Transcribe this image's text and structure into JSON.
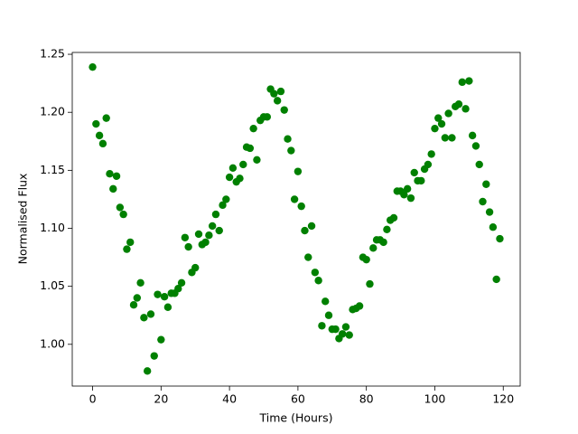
{
  "chart_data": {
    "type": "scatter",
    "xlabel": "Time (Hours)",
    "ylabel": "Normalised Flux",
    "color": "#008000",
    "x": [
      0,
      1,
      2,
      3,
      4,
      5,
      6,
      7,
      8,
      9,
      10,
      11,
      12,
      13,
      14,
      15,
      16,
      17,
      18,
      19,
      20,
      21,
      22,
      23,
      24,
      25,
      26,
      27,
      28,
      29,
      30,
      31,
      32,
      33,
      34,
      35,
      36,
      37,
      38,
      39,
      40,
      41,
      42,
      43,
      44,
      45,
      46,
      47,
      48,
      49,
      50,
      51,
      52,
      53,
      54,
      55,
      56,
      57,
      58,
      59,
      60,
      61,
      62,
      63,
      64,
      65,
      66,
      67,
      68,
      69,
      70,
      71,
      72,
      73,
      74,
      75,
      76,
      77,
      78,
      79,
      80,
      81,
      82,
      83,
      84,
      85,
      86,
      87,
      88,
      89,
      90,
      91,
      92,
      93,
      94,
      95,
      96,
      97,
      98,
      99,
      100,
      101,
      102,
      103,
      104,
      105,
      106,
      107,
      108,
      109,
      110,
      111,
      112,
      113,
      114,
      115,
      116,
      117,
      118,
      119
    ],
    "values": [
      1.239,
      1.19,
      1.18,
      1.173,
      1.195,
      1.147,
      1.134,
      1.145,
      1.118,
      1.112,
      1.082,
      1.088,
      1.034,
      1.04,
      1.053,
      1.023,
      0.977,
      1.026,
      0.99,
      1.043,
      1.004,
      1.041,
      1.032,
      1.044,
      1.044,
      1.048,
      1.053,
      1.092,
      1.084,
      1.062,
      1.066,
      1.095,
      1.086,
      1.088,
      1.094,
      1.102,
      1.112,
      1.098,
      1.12,
      1.125,
      1.144,
      1.152,
      1.14,
      1.143,
      1.155,
      1.17,
      1.169,
      1.186,
      1.159,
      1.193,
      1.196,
      1.196,
      1.22,
      1.216,
      1.21,
      1.218,
      1.202,
      1.177,
      1.167,
      1.125,
      1.149,
      1.119,
      1.098,
      1.075,
      1.102,
      1.062,
      1.055,
      1.016,
      1.037,
      1.025,
      1.013,
      1.013,
      1.005,
      1.009,
      1.015,
      1.008,
      1.03,
      1.031,
      1.033,
      1.075,
      1.073,
      1.052,
      1.083,
      1.09,
      1.09,
      1.088,
      1.099,
      1.107,
      1.109,
      1.132,
      1.132,
      1.129,
      1.134,
      1.126,
      1.148,
      1.141,
      1.141,
      1.151,
      1.155,
      1.164,
      1.186,
      1.195,
      1.19,
      1.178,
      1.199,
      1.178,
      1.205,
      1.207,
      1.226,
      1.203,
      1.227,
      1.18,
      1.171,
      1.155,
      1.123,
      1.138,
      1.114,
      1.101,
      1.056,
      1.091
    ],
    "xlim": [
      -5.95,
      124.95
    ],
    "ylim": [
      0.964,
      1.2516
    ],
    "xticks": [
      0,
      20,
      40,
      60,
      80,
      100,
      120
    ],
    "yticks": [
      {
        "value": 1,
        "label": "1.00"
      },
      1.05,
      {
        "value": 1.1,
        "label": "1.10"
      },
      1.15,
      {
        "value": 1.2,
        "label": "1.20"
      },
      1.25
    ],
    "grid": false
  }
}
